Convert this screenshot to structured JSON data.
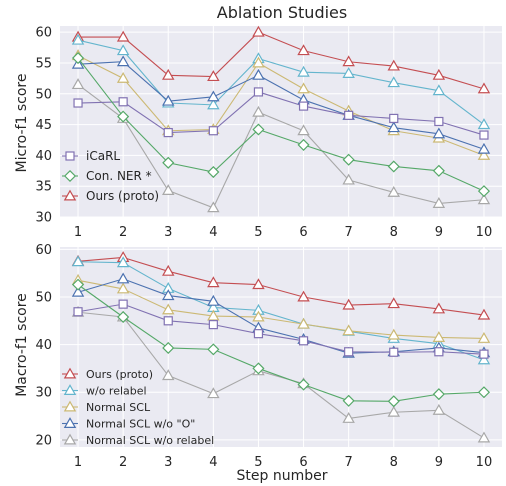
{
  "figure_title": "Ablation Studies",
  "xlabel": "Step number",
  "colors": {
    "ours": "#c44e52",
    "wo_relabel": "#64b5cd",
    "normal_scl": "#ccb974",
    "normal_scl_wo_o": "#4c72b0",
    "normal_scl_wo_relabel": "#a8a8a8",
    "icarl": "#8172b2",
    "con_ner": "#55a868",
    "panel_bg": "#eaeaf2",
    "grid": "#ffffff"
  },
  "chart_data": [
    {
      "type": "line",
      "ylabel": "Micro-f1 score",
      "x": [
        1,
        2,
        3,
        4,
        5,
        6,
        7,
        8,
        9,
        10
      ],
      "xlim": [
        0.6,
        10.4
      ],
      "ylim": [
        30,
        61
      ],
      "yticks": [
        30,
        35,
        40,
        45,
        50,
        55,
        60
      ],
      "grid": true,
      "legend_position": "lower-left",
      "series": [
        {
          "key": "ours",
          "name": "Ours (proto)",
          "marker": "triangle",
          "legend": true,
          "values": [
            59.2,
            59.2,
            53.0,
            52.8,
            60.0,
            57.0,
            55.2,
            54.5,
            53.0,
            50.8
          ]
        },
        {
          "key": "wo_relabel",
          "name": "",
          "marker": "triangle",
          "legend": false,
          "values": [
            58.7,
            57.0,
            48.5,
            48.2,
            55.7,
            53.5,
            53.3,
            51.8,
            50.5,
            45.0
          ]
        },
        {
          "key": "normal_scl",
          "name": "",
          "marker": "triangle",
          "legend": false,
          "values": [
            56.2,
            52.5,
            44.0,
            44.2,
            55.0,
            50.8,
            47.2,
            44.0,
            42.8,
            40.0
          ]
        },
        {
          "key": "normal_scl_wo_o",
          "name": "",
          "marker": "triangle",
          "legend": false,
          "values": [
            54.8,
            55.2,
            48.8,
            49.5,
            53.0,
            49.0,
            46.5,
            44.5,
            43.5,
            41.0
          ]
        },
        {
          "key": "normal_scl_wo_relabel",
          "name": "",
          "marker": "triangle",
          "legend": false,
          "values": [
            51.5,
            46.0,
            34.3,
            31.5,
            47.0,
            44.0,
            36.0,
            34.0,
            32.2,
            32.8
          ]
        },
        {
          "key": "icarl",
          "name": "iCaRL",
          "marker": "square",
          "legend": true,
          "values": [
            48.5,
            48.7,
            43.7,
            44.0,
            50.3,
            48.0,
            46.5,
            46.0,
            45.5,
            43.3
          ]
        },
        {
          "key": "con_ner",
          "name": "Con. NER *",
          "marker": "diamond",
          "legend": true,
          "values": [
            55.8,
            46.3,
            38.8,
            37.3,
            44.2,
            41.7,
            39.3,
            38.2,
            37.5,
            34.2
          ]
        }
      ],
      "legend": [
        "iCaRL",
        "Con. NER *",
        "Ours (proto)"
      ]
    },
    {
      "type": "line",
      "ylabel": "Macro-f1 score",
      "x": [
        1,
        2,
        3,
        4,
        5,
        6,
        7,
        8,
        9,
        10
      ],
      "xlim": [
        0.6,
        10.4
      ],
      "ylim": [
        18.5,
        60.5
      ],
      "yticks": [
        20,
        30,
        40,
        50,
        60
      ],
      "grid": true,
      "legend_position": "lower-left",
      "series": [
        {
          "key": "ours",
          "name": "Ours (proto)",
          "marker": "triangle",
          "legend": true,
          "values": [
            57.5,
            58.3,
            55.4,
            53.0,
            52.6,
            50.0,
            48.3,
            48.6,
            47.5,
            46.2
          ]
        },
        {
          "key": "wo_relabel",
          "name": "w/o relabel",
          "marker": "triangle",
          "legend": true,
          "values": [
            57.4,
            57.2,
            51.8,
            47.8,
            47.2,
            44.3,
            42.8,
            41.3,
            40.2,
            36.8
          ]
        },
        {
          "key": "normal_scl",
          "name": "Normal SCL",
          "marker": "triangle",
          "legend": true,
          "values": [
            53.5,
            51.7,
            47.3,
            46.0,
            45.8,
            44.3,
            42.9,
            42.0,
            41.5,
            41.3
          ]
        },
        {
          "key": "normal_scl_wo_o",
          "name": "Normal SCL w/o \"O\"",
          "marker": "triangle",
          "legend": true,
          "values": [
            51.0,
            53.8,
            50.3,
            49.1,
            43.5,
            41.1,
            38.2,
            38.5,
            39.3,
            38.3
          ]
        },
        {
          "key": "normal_scl_wo_relabel",
          "name": "Normal SCL w/o relabel",
          "marker": "triangle",
          "legend": true,
          "values": [
            46.8,
            45.8,
            33.5,
            29.7,
            34.5,
            31.8,
            24.5,
            25.8,
            26.2,
            20.4
          ]
        },
        {
          "key": "icarl",
          "name": "",
          "marker": "square",
          "legend": false,
          "values": [
            46.9,
            48.5,
            45.0,
            44.2,
            42.3,
            40.8,
            38.5,
            38.4,
            38.5,
            38.0
          ]
        },
        {
          "key": "con_ner",
          "name": "",
          "marker": "diamond",
          "legend": false,
          "values": [
            52.6,
            45.8,
            39.3,
            39.0,
            35.0,
            31.6,
            28.2,
            28.1,
            29.6,
            30.0
          ]
        }
      ],
      "legend": [
        "Ours (proto)",
        "w/o relabel",
        "Normal SCL",
        "Normal SCL w/o \"O\"",
        "Normal SCL w/o relabel"
      ]
    }
  ]
}
